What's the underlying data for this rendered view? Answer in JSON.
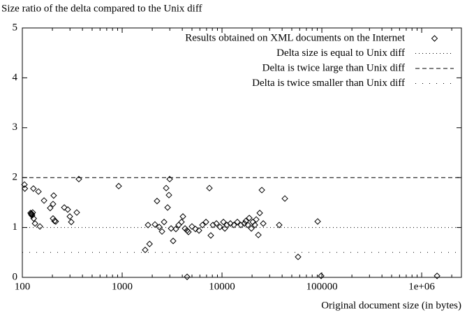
{
  "chart_data": {
    "type": "scatter",
    "title": "Size ratio of the delta compared to the Unix diff",
    "x_label": "Original document size (in bytes)",
    "x_scale": "log",
    "xlim": [
      100,
      2500000
    ],
    "ylim": [
      0,
      5
    ],
    "xticks": [
      100,
      1000,
      10000,
      100000,
      {
        "value": 1000000,
        "label": "1e+06"
      }
    ],
    "yticks": [
      0,
      1,
      2,
      3,
      4,
      5
    ],
    "legend": "top-right",
    "series": [
      {
        "name": "Results obtained on XML documents on the Internet",
        "color": "#000000",
        "marker": "diamond",
        "x": [
          105,
          106,
          129,
          145,
          121,
          123,
          125,
          127,
          123,
          125,
          134,
          130,
          150,
          165,
          190,
          203,
          206,
          203,
          210,
          216,
          263,
          285,
          299,
          309,
          351,
          368,
          923,
          1700,
          1815,
          1880,
          2130,
          2235,
          2350,
          2505,
          2630,
          2760,
          2850,
          2990,
          2940,
          3090,
          3240,
          3450,
          3680,
          3930,
          4060,
          4260,
          4470,
          4610,
          5000,
          5420,
          5880,
          6370,
          6910,
          7480,
          7720,
          8110,
          8790,
          9530,
          10330,
          10670,
          11190,
          12130,
          13150,
          14250,
          15450,
          16750,
          17300,
          18150,
          18740,
          19680,
          20320,
          21330,
          22020,
          23120,
          23870,
          25060,
          25870,
          37400,
          42600,
          57800,
          90800,
          98400,
          1426000,
          4470
        ],
        "values": [
          1.86,
          1.78,
          1.78,
          1.72,
          1.29,
          1.28,
          1.27,
          1.3,
          1.26,
          1.24,
          1.08,
          1.18,
          1.02,
          1.54,
          1.39,
          1.47,
          1.64,
          1.18,
          1.13,
          1.12,
          1.4,
          1.36,
          1.22,
          1.11,
          1.3,
          1.97,
          1.83,
          0.55,
          1.05,
          0.67,
          1.06,
          1.53,
          1.01,
          0.92,
          1.11,
          1.79,
          1.4,
          1.97,
          1.65,
          0.98,
          0.73,
          0.97,
          1.05,
          1.11,
          1.22,
          0.98,
          0.94,
          0.91,
          1.02,
          0.97,
          0.94,
          1.05,
          1.11,
          1.79,
          0.84,
          1.05,
          1.08,
          1.01,
          1.11,
          0.98,
          1.05,
          1.08,
          1.05,
          1.11,
          1.05,
          1.08,
          1.13,
          1.05,
          1.19,
          0.98,
          1.11,
          1.05,
          1.16,
          0.85,
          1.29,
          1.75,
          1.08,
          1.05,
          1.58,
          0.41,
          1.12,
          0.03,
          0.03,
          0.01
        ]
      }
    ],
    "reference_lines": [
      {
        "name": "Delta size is equal to Unix diff",
        "value": 1,
        "style": "dotted"
      },
      {
        "name": "Delta is twice large than Unix diff",
        "value": 2,
        "style": "dashed"
      },
      {
        "name": "Delta is twice smaller than Unix diff",
        "value": 0.5,
        "style": "sparse-dotted"
      }
    ]
  }
}
